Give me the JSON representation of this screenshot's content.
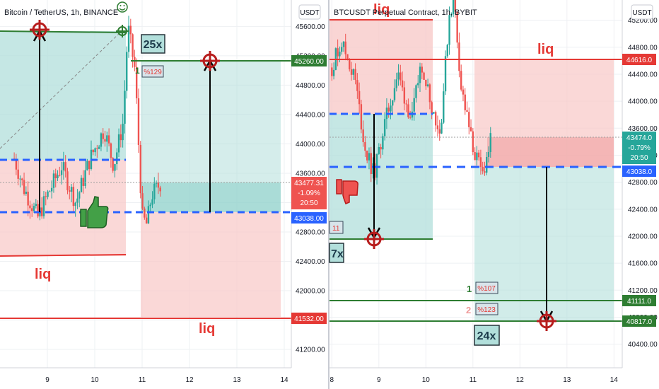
{
  "colors": {
    "up": "#26a69a",
    "down": "#ef5350",
    "profit_fill": "#b2dfdb",
    "loss_fill": "#f8cbc9",
    "target_line": "#2e7d32",
    "liq_line": "#e53935",
    "entry_line": "#2962ff",
    "label_red": "#e53935"
  },
  "charts": [
    {
      "title": "Bitcoin / TetherUS, 1h, BINANCE",
      "currency_button": "USDT",
      "leverage_label": "25x",
      "target_level": "1",
      "target_percent": "%129",
      "liq_labels": [
        "liq",
        "liq"
      ],
      "price_badges": {
        "target": "45260.00",
        "current": "43477.31",
        "change": "-1.09%",
        "countdown": "20:50",
        "entry": "43038.00",
        "liq": "41532.00"
      },
      "icons": [
        "thumbs-up-icon",
        "target-crosshair-icon",
        "smiley-icon"
      ]
    },
    {
      "title": "BTCUSDT Perpetual Contract, 1h, BYBIT",
      "currency_button": "USDT",
      "leverage_label": "24x",
      "cutoff_leverage_label": "7x",
      "cutoff_percent": "11",
      "liq_labels": [
        "liq",
        "liq"
      ],
      "targets": [
        {
          "level": "1",
          "percent": "%107"
        },
        {
          "level": "2",
          "percent": "%123"
        }
      ],
      "price_badges": {
        "liq": "44616.0",
        "current": "43474.0",
        "change": "-0.79%",
        "countdown": "20:50",
        "entry": "43038.0",
        "target1": "41111.0",
        "target2": "40817.0"
      },
      "icons": [
        "thumbs-down-icon",
        "target-crosshair-icon"
      ]
    }
  ],
  "chart_data": [
    {
      "type": "line",
      "title": "Bitcoin / TetherUS, 1h, BINANCE",
      "xlabel": "",
      "ylabel": "",
      "x_ticks": [
        "9",
        "10",
        "11",
        "12",
        "13",
        "14"
      ],
      "y_ticks": [
        45600,
        45200,
        44800,
        44400,
        44000,
        43600,
        43200,
        42800,
        42400,
        42000,
        41600,
        41200
      ],
      "ylim": [
        40950,
        45960
      ],
      "grid": true,
      "series": [
        {
          "x": [
            8.3,
            8.5,
            8.8,
            9.0,
            9.3,
            9.6,
            9.9,
            10.2,
            10.4,
            10.6,
            10.7,
            10.85,
            11.0,
            11.1,
            11.2,
            11.4
          ],
          "values": [
            43800,
            43400,
            43000,
            43300,
            43700,
            43200,
            43800,
            44200,
            43700,
            44300,
            45600,
            45000,
            43000,
            42900,
            43300,
            43477
          ]
        }
      ],
      "levels": {
        "entry": 43038,
        "target": 45260,
        "liq": 41532,
        "current": 43477.31,
        "short_entry": 43640
      }
    },
    {
      "type": "line",
      "title": "BTCUSDT Perpetual Contract, 1h, BYBIT",
      "xlabel": "",
      "ylabel": "",
      "x_ticks": [
        "8",
        "9",
        "10",
        "11",
        "12",
        "13",
        "14"
      ],
      "y_ticks": [
        45200,
        44800,
        44400,
        44000,
        43600,
        43200,
        42800,
        42400,
        42000,
        41600,
        41200,
        40800,
        40400
      ],
      "ylim": [
        40050,
        45500
      ],
      "grid": true,
      "series": [
        {
          "x": [
            8.0,
            8.2,
            8.5,
            8.7,
            8.9,
            9.1,
            9.4,
            9.7,
            9.9,
            10.1,
            10.3,
            10.5,
            10.6,
            10.75,
            11.0,
            11.2,
            11.4
          ],
          "values": [
            44500,
            44900,
            44300,
            43300,
            42900,
            43600,
            44400,
            43700,
            44600,
            44000,
            43500,
            45300,
            45500,
            44200,
            43300,
            42900,
            43474
          ]
        }
      ],
      "levels": {
        "entry": 43038,
        "liq": 44616,
        "target1": 41111,
        "target2": 40817,
        "current": 43474,
        "short_entry_old": 43810,
        "old_target": 42000
      }
    }
  ]
}
